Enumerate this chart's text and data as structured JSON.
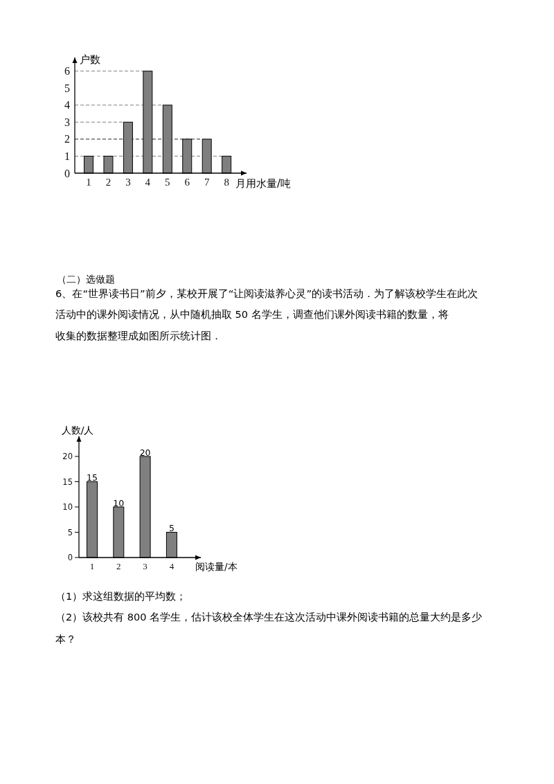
{
  "chart_data": [
    {
      "type": "bar",
      "xlabel": "月用水量/吨",
      "ylabel": "户数",
      "categories": [
        "1",
        "2",
        "3",
        "4",
        "5",
        "6",
        "7",
        "8"
      ],
      "values": [
        1,
        1,
        3,
        6,
        4,
        2,
        2,
        1
      ],
      "color": "#7f7f7f",
      "ylim": [
        0,
        6.8
      ],
      "yticks": [
        0,
        1,
        2,
        3,
        4,
        5,
        6
      ],
      "ref_lines": [
        {
          "axis": "y",
          "value": 1,
          "line_style": "dashed",
          "color": "#7f7f7f"
        },
        {
          "axis": "y",
          "value": 2,
          "line_style": "dashed",
          "color": "#222222"
        },
        {
          "axis": "y",
          "value": 3,
          "line_style": "dashed",
          "color": "#7f7f7f"
        },
        {
          "axis": "y",
          "value": 4,
          "line_style": "dashed",
          "color": "#7f7f7f"
        },
        {
          "axis": "y",
          "value": 6,
          "line_style": "dashed",
          "color": "#7f7f7f"
        }
      ]
    },
    {
      "type": "bar",
      "xlabel": "阅读量/本",
      "ylabel": "人数/人",
      "categories": [
        "1",
        "2",
        "3",
        "4"
      ],
      "values": [
        15,
        10,
        20,
        5
      ],
      "color": "#808080",
      "ylim": [
        0,
        24
      ],
      "yticks": [
        0,
        5,
        10,
        15,
        20
      ],
      "data_labels": true,
      "annotations": [
        "（二）选做题",
        "6、在“世界读书日”前夕，某校开展了“让阅读滋养心灵”的读书活动．为了解该校学生在此次",
        "活动中的课外阅读情况，从中随机抽取 50 名学生，调查他们课外阅读书籍的数量，将",
        "收集的数据整理成如图所示统计图．",
        "（1）求这组数据的平均数；",
        "（2）该校共有 800 名学生，估计该校全体学生在这次活动中课外阅读书籍的总量大约是多少",
        "本？"
      ]
    }
  ]
}
